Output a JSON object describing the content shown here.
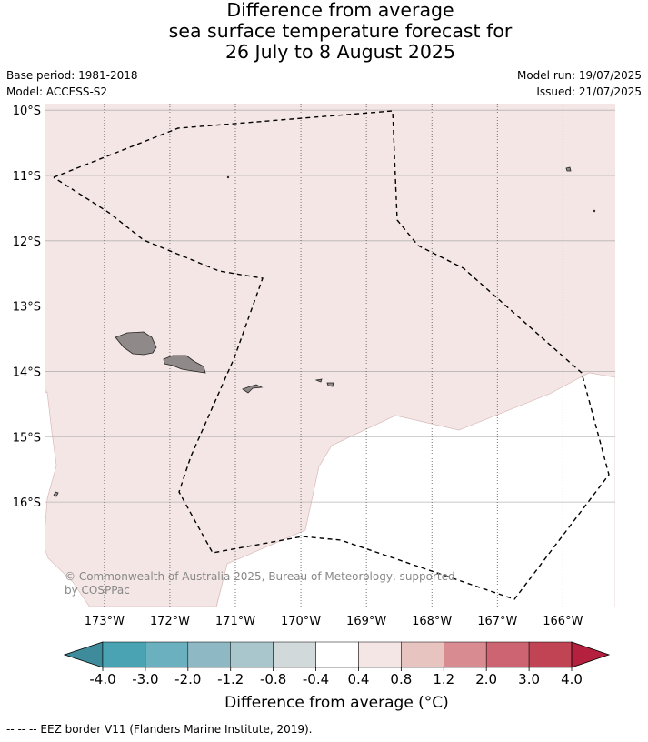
{
  "header": {
    "title_lines": [
      "Difference from average",
      "sea surface temperature forecast for",
      "26 July to 8 August 2025"
    ],
    "base_period": "Base period: 1981-2018",
    "model": "Model: ACCESS-S2",
    "model_run": "Model run: 19/07/2025",
    "issued": "Issued: 21/07/2025"
  },
  "map": {
    "lat_labels": [
      "10°S",
      "11°S",
      "12°S",
      "13°S",
      "14°S",
      "15°S",
      "16°S"
    ],
    "lon_labels": [
      "173°W",
      "172°W",
      "171°W",
      "170°W",
      "169°W",
      "168°W",
      "167°W",
      "166°W"
    ],
    "lat_values": [
      -10,
      -11,
      -12,
      -13,
      -14,
      -15,
      -16
    ],
    "lon_values": [
      -173,
      -172,
      -171,
      -170,
      -169,
      -168,
      -167,
      -166
    ],
    "extent": {
      "lon_min": -173.9,
      "lon_max": -165.2,
      "lat_top": -9.9,
      "lat_bottom": -17.6
    },
    "anomaly_class_fill": "#f3e6e4",
    "neutral_fill": "#ffffff",
    "land_fill": "#8f8a89",
    "copyright": "© Commonwealth of Australia 2025, Bureau of Meteorology, supported by COSPPac"
  },
  "colorbar": {
    "colors": [
      "#3d8b9b",
      "#4aa3b3",
      "#6bb0be",
      "#8eb9c4",
      "#a8c6cb",
      "#d1d9da",
      "#ffffff",
      "#f4e6e4",
      "#e8c4c1",
      "#d88c92",
      "#cc6571",
      "#c04454",
      "#b5203f"
    ],
    "tick_labels": [
      "-4.0",
      "-3.0",
      "-2.0",
      "-1.2",
      "-0.8",
      "-0.4",
      "0.4",
      "0.8",
      "1.2",
      "2.0",
      "3.0",
      "4.0"
    ],
    "label": "Difference from average (°C)"
  },
  "footnote": "--  --  -- EEZ border V11 (Flanders Marine Institute, 2019)."
}
